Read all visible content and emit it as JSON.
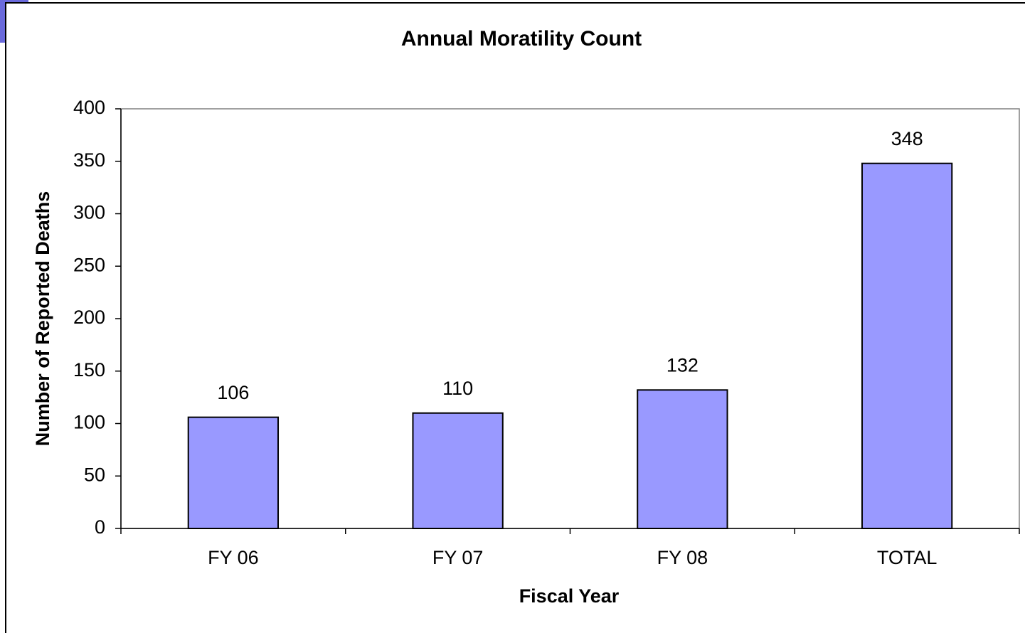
{
  "chart_data": {
    "type": "bar",
    "title": "Annual Moratility Count",
    "x_label": "Fiscal Year",
    "y_label": "Number of Reported Deaths",
    "categories": [
      "FY 06",
      "FY 07",
      "FY 08",
      "TOTAL"
    ],
    "values": [
      106,
      110,
      132,
      348
    ],
    "color": "#9999ff",
    "ylim": [
      0,
      400
    ],
    "yticks": [
      0,
      50,
      100,
      150,
      200,
      250,
      300,
      350,
      400
    ],
    "grid": false
  }
}
